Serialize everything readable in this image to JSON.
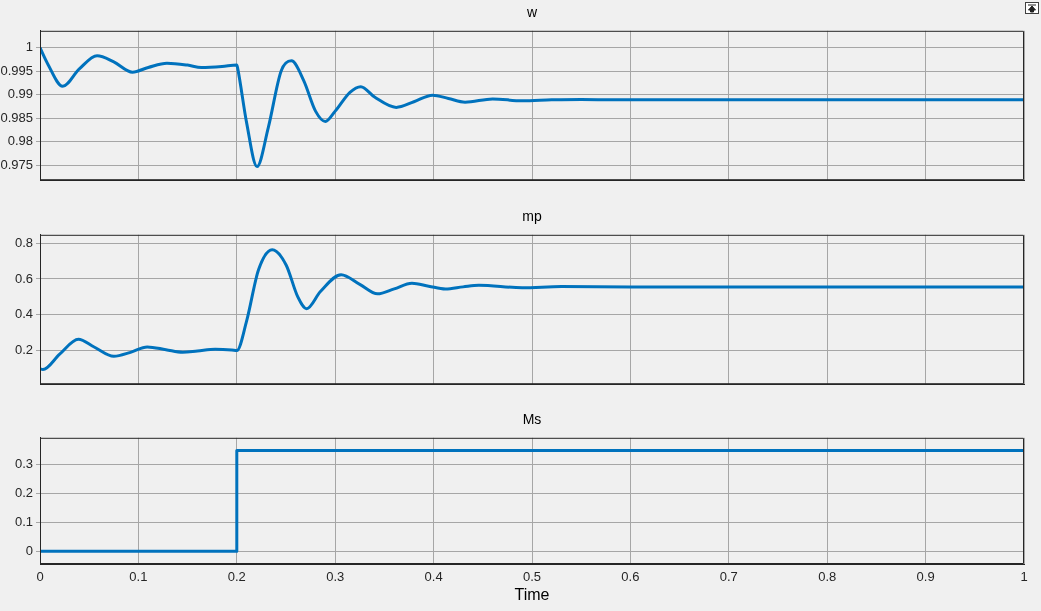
{
  "chart_data": [
    {
      "type": "line",
      "title": "w",
      "color": "#0072bd",
      "grid": true,
      "tick_labels": "y",
      "xlim": [
        0,
        1
      ],
      "xticks": [
        0,
        0.1,
        0.2,
        0.3,
        0.4,
        0.5,
        0.6,
        0.7,
        0.8,
        0.9,
        1
      ],
      "ylim": [
        0.9718,
        1.0036
      ],
      "yticks": [
        0.975,
        0.98,
        0.985,
        0.99,
        0.995,
        1
      ],
      "x": [
        0,
        0.008,
        0.023,
        0.04,
        0.058,
        0.075,
        0.094,
        0.11,
        0.129,
        0.15,
        0.164,
        0.185,
        0.2,
        0.201,
        0.21,
        0.2205,
        0.232,
        0.245,
        0.2555,
        0.268,
        0.28,
        0.29,
        0.3,
        0.315,
        0.326,
        0.34,
        0.362,
        0.38,
        0.399,
        0.415,
        0.432,
        0.46,
        0.49,
        0.52,
        0.55,
        0.6,
        1
      ],
      "values": [
        1,
        0.9965,
        0.9918,
        0.9955,
        0.9983,
        0.997,
        0.9948,
        0.9958,
        0.9967,
        0.9963,
        0.9958,
        0.996,
        0.9963,
        0.9955,
        0.984,
        0.9747,
        0.983,
        0.995,
        0.9972,
        0.993,
        0.9865,
        0.9843,
        0.9865,
        0.9905,
        0.9917,
        0.9895,
        0.9873,
        0.9885,
        0.9899,
        0.9892,
        0.9884,
        0.9891,
        0.9887,
        0.9889,
        0.989,
        0.9889,
        0.9889
      ]
    },
    {
      "type": "line",
      "title": "mp",
      "color": "#0072bd",
      "grid": true,
      "tick_labels": "y",
      "xlim": [
        0,
        1
      ],
      "xticks": [
        0,
        0.1,
        0.2,
        0.3,
        0.4,
        0.5,
        0.6,
        0.7,
        0.8,
        0.9,
        1
      ],
      "ylim": [
        0.012,
        0.847
      ],
      "yticks": [
        0.2,
        0.4,
        0.6,
        0.8
      ],
      "x": [
        0,
        0.003,
        0.02,
        0.039,
        0.055,
        0.075,
        0.092,
        0.109,
        0.128,
        0.145,
        0.16,
        0.178,
        0.195,
        0.2,
        0.21,
        0.222,
        0.236,
        0.25,
        0.262,
        0.271,
        0.285,
        0.306,
        0.325,
        0.343,
        0.36,
        0.378,
        0.395,
        0.412,
        0.43,
        0.446,
        0.49,
        0.53,
        0.6,
        1
      ],
      "values": [
        0.098,
        0.094,
        0.18,
        0.263,
        0.22,
        0.168,
        0.19,
        0.22,
        0.205,
        0.191,
        0.198,
        0.207,
        0.203,
        0.2,
        0.366,
        0.65,
        0.763,
        0.68,
        0.5,
        0.434,
        0.53,
        0.624,
        0.57,
        0.517,
        0.545,
        0.576,
        0.56,
        0.544,
        0.556,
        0.565,
        0.551,
        0.558,
        0.555,
        0.555
      ]
    },
    {
      "type": "step",
      "title": "Ms",
      "xlabel": "Time",
      "color": "#0072bd",
      "grid": true,
      "xlim": [
        0,
        1
      ],
      "xticks": [
        0,
        0.1,
        0.2,
        0.3,
        0.4,
        0.5,
        0.6,
        0.7,
        0.8,
        0.9,
        1
      ],
      "ylim": [
        -0.044,
        0.394
      ],
      "yticks": [
        0,
        0.1,
        0.2,
        0.3
      ],
      "x": [
        0,
        0.2,
        1
      ],
      "values": [
        0,
        0.35,
        0.35
      ]
    }
  ]
}
